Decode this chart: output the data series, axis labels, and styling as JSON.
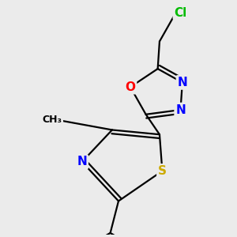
{
  "bg_color": "#ebebeb",
  "bond_color": "#000000",
  "bond_width": 1.6,
  "atom_colors": {
    "N": "#0000ff",
    "O": "#ff0000",
    "S": "#ccaa00",
    "Cl": "#00bb00"
  },
  "figsize": [
    3.0,
    3.0
  ],
  "dpi": 100
}
